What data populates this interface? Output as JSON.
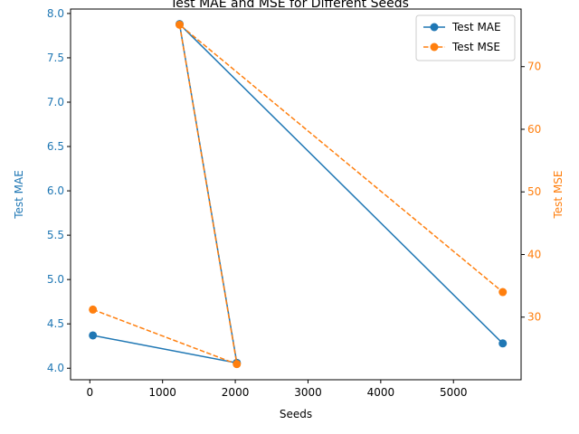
{
  "chart_data": {
    "type": "line",
    "title": "Test MAE and MSE for Different Seeds",
    "xlabel": "Seeds",
    "xlim": [
      -265,
      5930
    ],
    "x_ticks": [
      "0",
      "1000",
      "2000",
      "3000",
      "4000",
      "5000"
    ],
    "x_tick_values": [
      0,
      1000,
      2000,
      3000,
      4000,
      5000
    ],
    "left_axis": {
      "label": "Test MAE",
      "color": "#1f77b4",
      "ylim": [
        3.87,
        8.05
      ],
      "ticks": [
        "4.0",
        "4.5",
        "5.0",
        "5.5",
        "6.0",
        "6.5",
        "7.0",
        "7.5",
        "8.0"
      ],
      "tick_values": [
        4.0,
        4.5,
        5.0,
        5.5,
        6.0,
        6.5,
        7.0,
        7.5,
        8.0
      ]
    },
    "right_axis": {
      "label": "Test MSE",
      "color": "#ff7f0e",
      "ylim": [
        20.0,
        79.2
      ],
      "ticks": [
        "30",
        "40",
        "50",
        "60",
        "70"
      ],
      "tick_values": [
        30,
        40,
        50,
        60,
        70
      ]
    },
    "series": [
      {
        "name": "Test MAE",
        "axis": "left",
        "color": "#1f77b4",
        "line_style": "solid",
        "marker": "circle",
        "x": [
          42,
          2021,
          1234,
          5678
        ],
        "y": [
          4.37,
          4.06,
          7.88,
          4.28
        ]
      },
      {
        "name": "Test MSE",
        "axis": "right",
        "color": "#ff7f0e",
        "line_style": "dashed",
        "marker": "circle",
        "x": [
          42,
          2021,
          1234,
          5678
        ],
        "y": [
          31.2,
          22.5,
          76.7,
          34.0
        ]
      }
    ],
    "legend": {
      "placement": "top-right",
      "entries": [
        "Test MAE",
        "Test MSE"
      ]
    },
    "grid": false
  }
}
